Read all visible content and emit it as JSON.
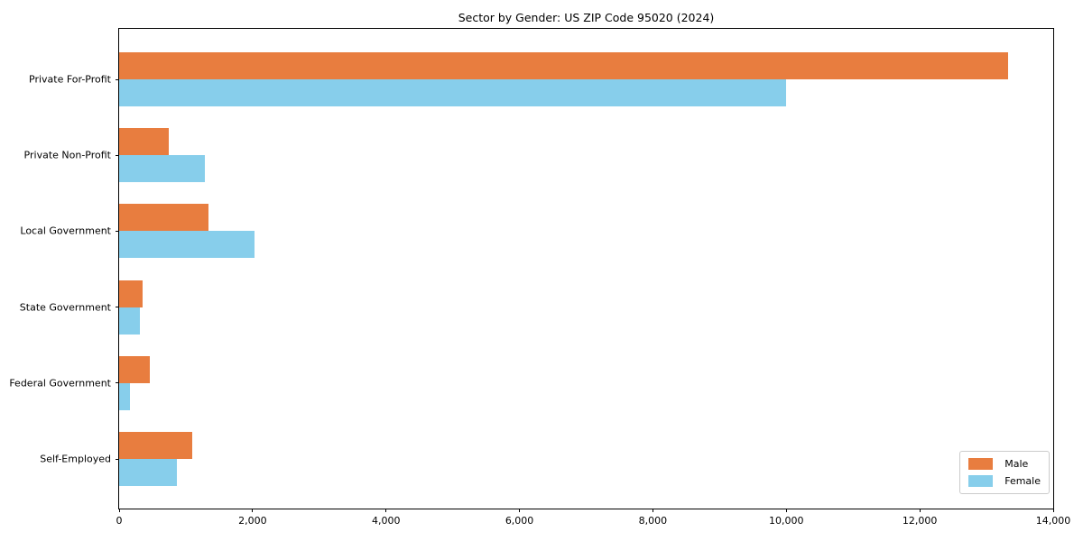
{
  "chart_data": {
    "type": "bar",
    "orientation": "horizontal",
    "title": "Sector by Gender: US ZIP Code 95020 (2024)",
    "categories": [
      "Private For-Profit",
      "Private Non-Profit",
      "Local Government",
      "State Government",
      "Federal Government",
      "Self-Employed"
    ],
    "series": [
      {
        "name": "Male",
        "color": "#e87d3f",
        "values": [
          13330,
          750,
          1340,
          350,
          465,
          1100
        ]
      },
      {
        "name": "Female",
        "color": "#87ceeb",
        "values": [
          10000,
          1285,
          2030,
          305,
          165,
          860
        ]
      }
    ],
    "xlim": [
      0,
      14000
    ],
    "x_ticks": [
      0,
      2000,
      4000,
      6000,
      8000,
      10000,
      12000,
      14000
    ],
    "x_tick_labels": [
      "0",
      "2,000",
      "4,000",
      "6,000",
      "8,000",
      "10,000",
      "12,000",
      "14,000"
    ],
    "grid": false,
    "legend": {
      "position": "lower-right",
      "items": [
        "Male",
        "Female"
      ]
    }
  },
  "style": {
    "background": "#ffffff",
    "spine_color": "#000000",
    "tick_color": "#000000",
    "text_color": "#000000",
    "legend_border": "#cccccc",
    "legend_background": "#ffffff"
  }
}
